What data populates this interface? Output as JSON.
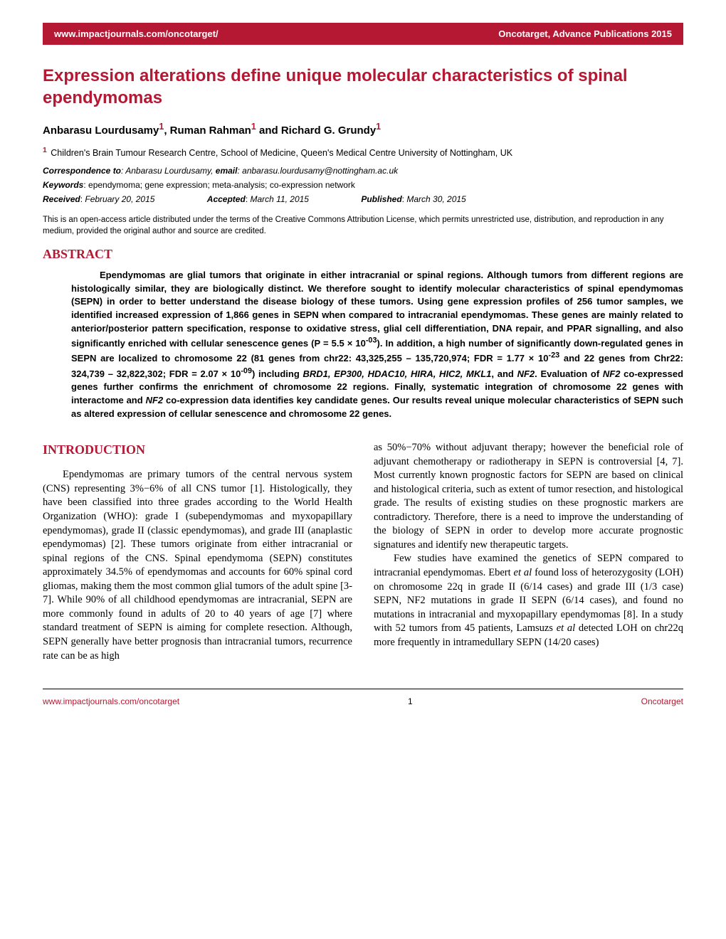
{
  "colors": {
    "brand": "#b51833",
    "text": "#000000",
    "background": "#ffffff"
  },
  "typography": {
    "title_fontsize": 24,
    "authors_fontsize": 15,
    "body_fontsize": 14.5,
    "abstract_fontsize": 13,
    "meta_fontsize": 12,
    "section_head_fontsize": 18
  },
  "header": {
    "left": "www.impactjournals.com/oncotarget/",
    "right": "Oncotarget, Advance Publications 2015"
  },
  "title": "Expression alterations define unique molecular characteristics of spinal ependymomas",
  "authors_html": "Anbarasu Lourdusamy<sup>1</sup>, Ruman Rahman<sup>1</sup> and Richard G. Grundy<sup>1</sup>",
  "affiliation": {
    "num": "1",
    "text": "Children's Brain Tumour Research Centre, School of Medicine, Queen's Medical Centre University of Nottingham, UK"
  },
  "correspondence": {
    "label": "Correspondence to",
    "name": "Anbarasu Lourdusamy,",
    "email_label": "email",
    "email": "anbarasu.lourdusamy@nottingham.ac.uk"
  },
  "keywords": {
    "label": "Keywords",
    "text": "ependymoma; gene expression; meta-analysis; co-expression network"
  },
  "dates": {
    "received_label": "Received",
    "received": "February 20, 2015",
    "accepted_label": "Accepted",
    "accepted": "March 11, 2015",
    "published_label": "Published",
    "published": "March 30, 2015"
  },
  "license": "This is an open-access article distributed under the terms of the Creative Commons Attribution License, which permits unrestricted use, distribution, and reproduction in any medium, provided the original author and source are credited.",
  "abstract_head": "ABSTRACT",
  "abstract_html": "Ependymomas are glial tumors that originate in either intracranial or spinal regions. Although tumors from different regions are histologically similar, they are biologically distinct. We therefore sought to identify molecular characteristics of spinal ependymomas (SEPN) in order to better understand the disease biology of these tumors. Using gene expression profiles of 256 tumor samples, we identified increased expression of 1,866 genes in SEPN when compared to intracranial ependymomas. These genes are mainly related to anterior/posterior pattern specification, response to oxidative stress, glial cell differentiation, DNA repair, and PPAR signalling, and also significantly enriched with cellular senescence genes (P = 5.5 × 10<sup>-03</sup>). In addition, a high number of significantly down-regulated genes in SEPN are localized to chromosome 22 (81 genes from chr22: 43,325,255 – 135,720,974; FDR = 1.77 × 10<sup>-23</sup> and 22 genes from Chr22: 324,739 – 32,822,302; FDR = 2.07 × 10<sup>-09</sup>) including <i>BRD1, EP300, HDAC10, HIRA, HIC2, MKL1</i>, and <i>NF2</i>. Evaluation of <i>NF2</i> co-expressed genes further confirms the enrichment of chromosome 22 regions. Finally, systematic integration of chromosome 22 genes with interactome and <i>NF2</i> co-expression data identifies key candidate genes. Our results reveal unique molecular characteristics of SEPN such as altered expression of cellular senescence and chromosome 22 genes.",
  "intro_head": "INTRODUCTION",
  "col1_html": "<p>Ependymomas are primary tumors of the central nervous system (CNS) representing 3%−6% of all CNS tumor [1]. Histologically, they have been classified into three grades according to the World Health Organization (WHO): grade I (subependymomas and myxopapillary ependymomas), grade II (classic ependymomas), and grade III (anaplastic ependymomas) [2]. These tumors originate from either intracranial or spinal regions of the CNS. Spinal ependymoma (SEPN) constitutes approximately 34.5% of ependymomas and accounts for 60% spinal cord gliomas, making them the most common glial tumors of the adult spine [3-7]. While 90% of all childhood ependymomas are intracranial, SEPN are more commonly found in adults of 20 to 40 years of age [7] where standard treatment of SEPN is aiming for complete resection. Although, SEPN generally have better prognosis than intracranial tumors, recurrence rate can be as high</p>",
  "col2_html": "<p style=\"text-indent:0\">as 50%−70% without adjuvant therapy; however the beneficial role of adjuvant chemotherapy or radiotherapy in SEPN is controversial [4, 7]. Most currently known prognostic factors for SEPN are based on clinical and histological criteria, such as extent of tumor resection, and histological grade. The results of existing studies on these prognostic markers are contradictory. Therefore, there is a need to improve the understanding of the biology of SEPN in order to develop more accurate prognostic signatures and identify new therapeutic targets.</p><p>Few studies have examined the genetics of SEPN compared to intracranial ependymomas. Ebert <i>et al</i> found loss of heterozygosity (LOH) on chromosome 22q in grade II (6/14 cases) and grade III (1/3 case) SEPN, NF2 mutations in grade II SEPN (6/14 cases), and found no mutations in intracranial and myxopapillary ependymomas [8]. In a study with 52 tumors from 45 patients, Lamsuzs <i>et al</i> detected LOH on chr22q more frequently in intramedullary SEPN (14/20 cases)</p>",
  "footer": {
    "left": "www.impactjournals.com/oncotarget",
    "page": "1",
    "right": "Oncotarget"
  }
}
